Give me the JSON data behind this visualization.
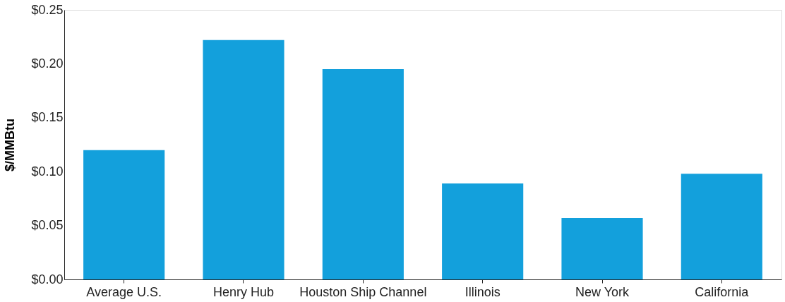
{
  "chart_data": {
    "type": "bar",
    "ylabel": "$/MMBtu",
    "categories": [
      "Average U.S.",
      "Henry Hub",
      "Houston Ship Channel",
      "Illinois",
      "New York",
      "California"
    ],
    "values": [
      0.12,
      0.222,
      0.195,
      0.089,
      0.057,
      0.098
    ],
    "color": "#13a0dc",
    "ylim": [
      0,
      0.25
    ],
    "yticks": [
      {
        "value": 0,
        "label": "$0.00"
      },
      {
        "value": 0.05,
        "label": "$0.05"
      },
      {
        "value": 0.1,
        "label": "$0.10"
      },
      {
        "value": 0.15,
        "label": "$0.15"
      },
      {
        "value": 0.2,
        "label": "$0.20"
      },
      {
        "value": 0.25,
        "label": "$0.25"
      }
    ],
    "grid": false
  }
}
